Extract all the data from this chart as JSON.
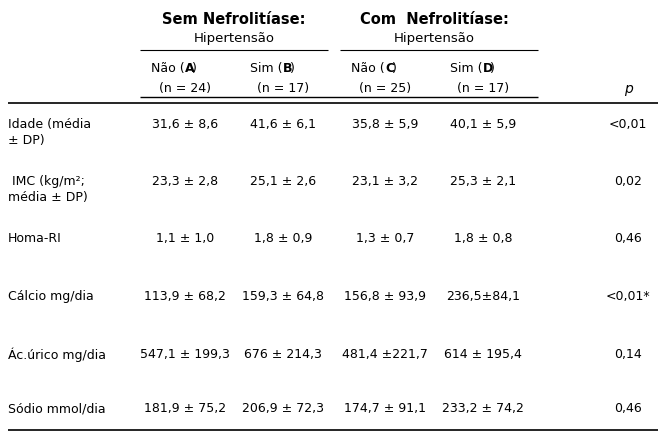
{
  "sem_label": "Sem Nefrolitíase:",
  "com_label": "Com  Nefrolitíase:",
  "hipertensao": "Hipertensão",
  "col_headers": [
    "Não (A)",
    "Sim (B)",
    "Não (C)",
    "Sim (D)"
  ],
  "col_bold_letters": [
    "A",
    "B",
    "C",
    "D"
  ],
  "col_n": [
    "(n = 24)",
    "(n = 17)",
    "(n = 25)",
    "(n = 17)"
  ],
  "p_label": "p",
  "rows": [
    {
      "label": [
        "Idade (média",
        "± DP)"
      ],
      "vals": [
        "31,6 ± 8,6",
        "41,6 ± 6,1",
        "35,8 ± 5,9",
        "40,1 ± 5,9"
      ],
      "p": "<0,01"
    },
    {
      "label": [
        " IMC (kg/m²;",
        "média ± DP)"
      ],
      "vals": [
        "23,3 ± 2,8",
        "25,1 ± 2,6",
        "23,1 ± 3,2",
        "25,3 ± 2,1"
      ],
      "p": "0,02"
    },
    {
      "label": [
        "Homa-RI",
        ""
      ],
      "vals": [
        "1,1 ± 1,0",
        "1,8 ± 0,9",
        "1,3 ± 0,7",
        "1,8 ± 0,8"
      ],
      "p": "0,46"
    },
    {
      "label": [
        "Cálcio mg/dia",
        ""
      ],
      "vals": [
        "113,9 ± 68,2",
        "159,3 ± 64,8",
        "156,8 ± 93,9",
        "236,5±84,1"
      ],
      "p": "<0,01*"
    },
    {
      "label": [
        "Ác.úrico mg/dia",
        ""
      ],
      "vals": [
        "547,1 ± 199,3",
        "676 ± 214,3",
        "481,4 ±221,7",
        "614 ± 195,4"
      ],
      "p": "0,14"
    },
    {
      "label": [
        "Sódio mmol/dia",
        ""
      ],
      "vals": [
        "181,9 ± 75,2",
        "206,9 ± 72,3",
        "174,7 ± 91,1",
        "233,2 ± 74,2"
      ],
      "p": "0,46"
    }
  ],
  "bg_color": "#ffffff",
  "text_color": "#000000",
  "fs": 9.0,
  "fs_bold": 10.5,
  "figw": 6.7,
  "figh": 4.4,
  "dpi": 100
}
